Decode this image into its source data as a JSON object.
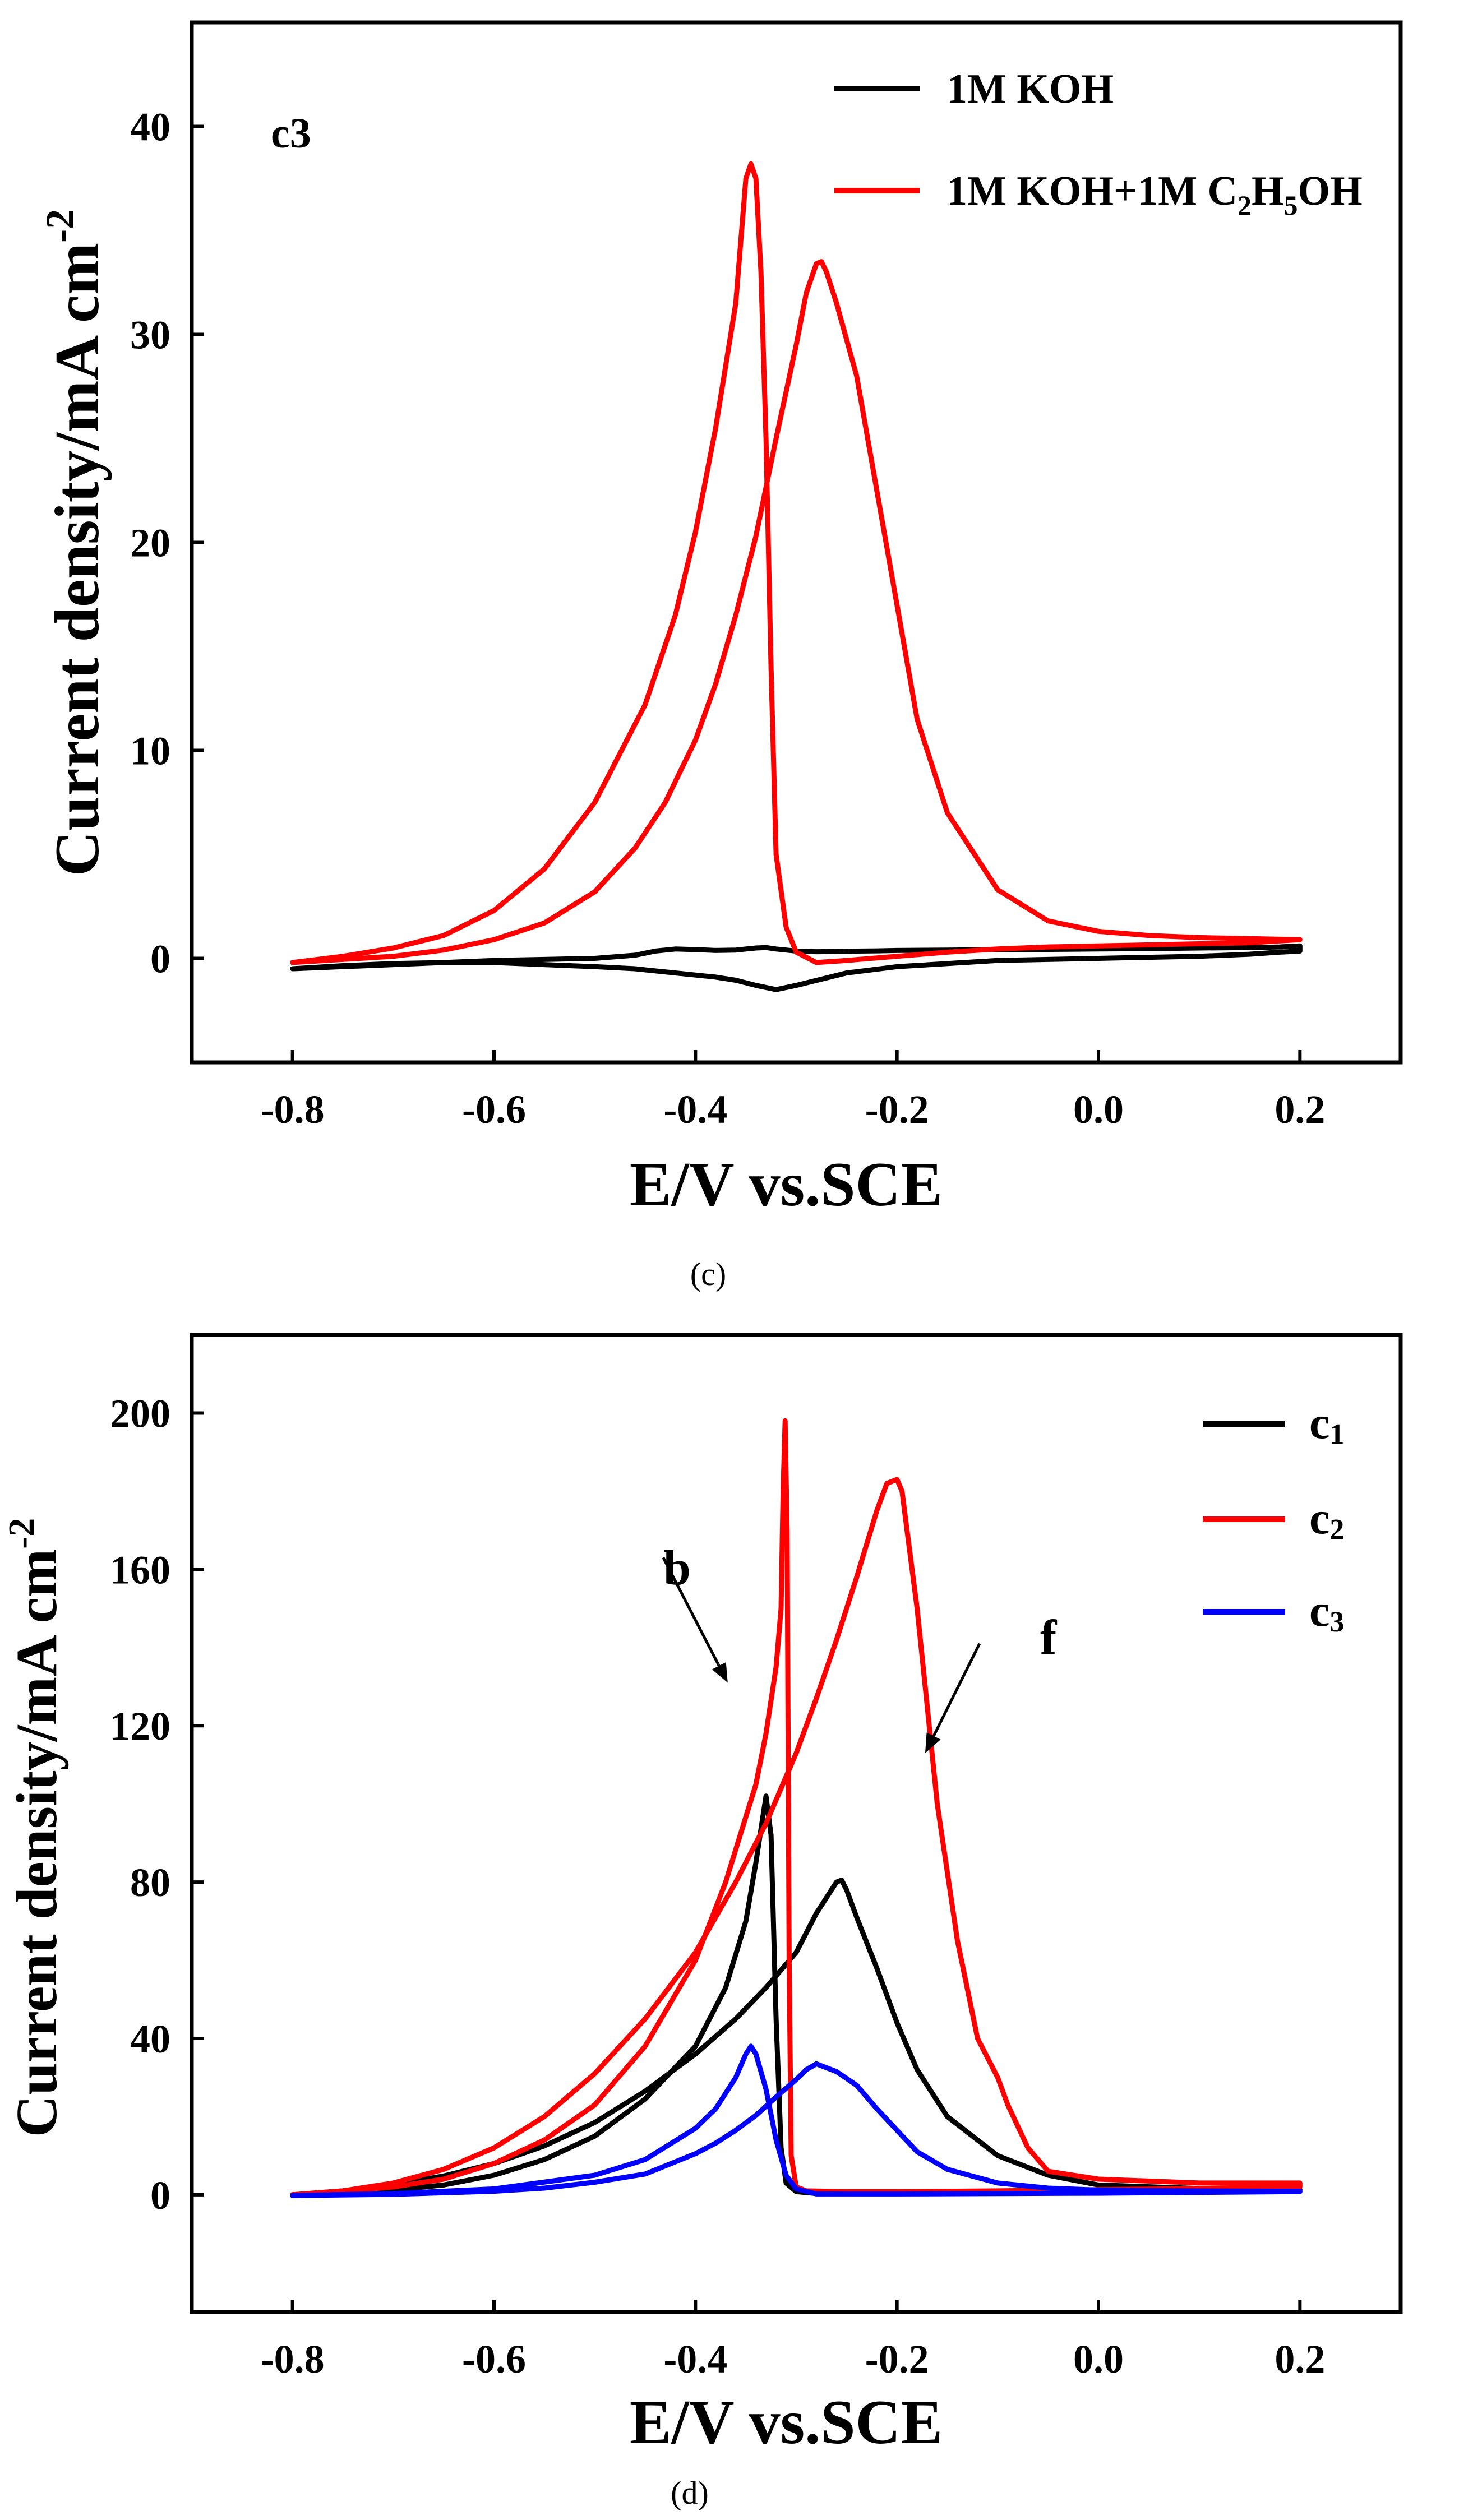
{
  "figure": {
    "panel_c_caption": "(c)",
    "panel_d_caption": "(d)"
  },
  "chart_data": [
    {
      "id": "c",
      "type": "line",
      "panel_label": "c3",
      "xlabel": "E/V vs.SCE",
      "ylabel": "Current density/mA cm",
      "ylabel_sup": "-2",
      "xlim": [
        -0.9,
        0.3
      ],
      "ylim": [
        -5,
        45
      ],
      "xticks": [
        -0.8,
        -0.6,
        -0.4,
        -0.2,
        0.0,
        0.2
      ],
      "xtick_labels": [
        "-0.8",
        "-0.6",
        "-0.4",
        "-0.2",
        "0.0",
        "0.2"
      ],
      "yticks": [
        0,
        10,
        20,
        30,
        40
      ],
      "ytick_labels": [
        "0",
        "10",
        "20",
        "30",
        "40"
      ],
      "legend_position": "top-right",
      "series": [
        {
          "name": "1M KOH",
          "color": "#000000",
          "x": [
            -0.8,
            -0.7,
            -0.6,
            -0.55,
            -0.5,
            -0.46,
            -0.44,
            -0.42,
            -0.4,
            -0.38,
            -0.36,
            -0.34,
            -0.33,
            -0.32,
            -0.3,
            -0.28,
            -0.26,
            -0.24,
            -0.22,
            -0.2,
            -0.15,
            -0.1,
            -0.05,
            0.0,
            0.05,
            0.1,
            0.15,
            0.18,
            0.2,
            0.2,
            0.18,
            0.15,
            0.1,
            0.05,
            0.0,
            -0.05,
            -0.1,
            -0.15,
            -0.2,
            -0.25,
            -0.3,
            -0.32,
            -0.34,
            -0.36,
            -0.38,
            -0.4,
            -0.42,
            -0.44,
            -0.46,
            -0.5,
            -0.55,
            -0.6,
            -0.65,
            -0.7,
            -0.75,
            -0.8
          ],
          "y": [
            -0.5,
            -0.3,
            -0.1,
            -0.05,
            0.0,
            0.15,
            0.35,
            0.45,
            0.42,
            0.38,
            0.4,
            0.5,
            0.52,
            0.45,
            0.35,
            0.32,
            0.33,
            0.35,
            0.36,
            0.38,
            0.4,
            0.42,
            0.43,
            0.45,
            0.47,
            0.5,
            0.52,
            0.55,
            0.6,
            0.35,
            0.3,
            0.2,
            0.1,
            0.05,
            0.0,
            -0.05,
            -0.1,
            -0.25,
            -0.4,
            -0.7,
            -1.3,
            -1.5,
            -1.3,
            -1.05,
            -0.9,
            -0.8,
            -0.7,
            -0.6,
            -0.5,
            -0.4,
            -0.3,
            -0.2,
            -0.2,
            -0.25,
            -0.35,
            -0.5
          ]
        },
        {
          "name": "1M KOH+1M C2H5OH",
          "legend_main": "1M KOH+1M C",
          "legend_sub1": "2",
          "legend_mid": "H",
          "legend_sub2": "5",
          "legend_tail": "OH",
          "color": "#ff0000",
          "x": [
            -0.8,
            -0.75,
            -0.7,
            -0.65,
            -0.6,
            -0.55,
            -0.5,
            -0.45,
            -0.42,
            -0.4,
            -0.38,
            -0.36,
            -0.355,
            -0.35,
            -0.345,
            -0.34,
            -0.335,
            -0.33,
            -0.325,
            -0.32,
            -0.31,
            -0.3,
            -0.28,
            -0.25,
            -0.2,
            -0.15,
            -0.1,
            -0.05,
            0.0,
            0.05,
            0.1,
            0.15,
            0.2,
            0.2,
            0.15,
            0.1,
            0.05,
            0.0,
            -0.05,
            -0.1,
            -0.15,
            -0.18,
            -0.2,
            -0.22,
            -0.24,
            -0.26,
            -0.27,
            -0.275,
            -0.28,
            -0.29,
            -0.3,
            -0.32,
            -0.34,
            -0.36,
            -0.38,
            -0.4,
            -0.43,
            -0.46,
            -0.5,
            -0.55,
            -0.6,
            -0.65,
            -0.7,
            -0.75,
            -0.8
          ],
          "y": [
            -0.2,
            0.1,
            0.5,
            1.1,
            2.3,
            4.3,
            7.5,
            12.2,
            16.5,
            20.5,
            25.5,
            31.5,
            34.5,
            37.5,
            38.2,
            37.5,
            33.0,
            25.0,
            14.0,
            5.0,
            1.5,
            0.3,
            -0.2,
            -0.1,
            0.1,
            0.3,
            0.45,
            0.55,
            0.6,
            0.65,
            0.7,
            0.75,
            0.9,
            0.9,
            0.95,
            1.0,
            1.1,
            1.3,
            1.8,
            3.3,
            7.0,
            11.5,
            17.0,
            22.5,
            28.0,
            31.5,
            33.0,
            33.5,
            33.4,
            32.0,
            29.5,
            25.0,
            20.3,
            16.5,
            13.2,
            10.5,
            7.5,
            5.3,
            3.2,
            1.7,
            0.9,
            0.4,
            0.1,
            -0.05,
            -0.2
          ]
        }
      ]
    },
    {
      "id": "d",
      "type": "line",
      "xlabel": "E/V vs.SCE",
      "ylabel": "Current density/mA cm",
      "ylabel_sup": "-2",
      "xlim": [
        -0.9,
        0.3
      ],
      "ylim": [
        -30,
        220
      ],
      "xticks": [
        -0.8,
        -0.6,
        -0.4,
        -0.2,
        0.0,
        0.2
      ],
      "xtick_labels": [
        "-0.8",
        "-0.6",
        "-0.4",
        "-0.2",
        "0.0",
        "0.2"
      ],
      "yticks": [
        0,
        40,
        80,
        120,
        160,
        200
      ],
      "ytick_labels": [
        "0",
        "40",
        "80",
        "120",
        "160",
        "200"
      ],
      "legend_position": "top-right",
      "annotations": [
        {
          "text": "b",
          "arrow_from": [
            -0.432,
            163
          ],
          "arrow_to": [
            -0.368,
            131
          ]
        },
        {
          "text": "f",
          "arrow_from": [
            -0.118,
            141
          ],
          "arrow_to": [
            -0.172,
            113
          ]
        }
      ],
      "series": [
        {
          "name": "c1",
          "label_letter": "c",
          "label_sub": "1",
          "color": "#000000",
          "x": [
            -0.8,
            -0.75,
            -0.7,
            -0.65,
            -0.6,
            -0.55,
            -0.5,
            -0.45,
            -0.4,
            -0.37,
            -0.35,
            -0.34,
            -0.33,
            -0.325,
            -0.32,
            -0.315,
            -0.31,
            -0.3,
            -0.28,
            -0.25,
            -0.2,
            -0.15,
            -0.1,
            0.0,
            0.1,
            0.2,
            0.2,
            0.1,
            0.0,
            -0.05,
            -0.1,
            -0.15,
            -0.18,
            -0.2,
            -0.22,
            -0.24,
            -0.25,
            -0.255,
            -0.26,
            -0.28,
            -0.3,
            -0.33,
            -0.36,
            -0.4,
            -0.45,
            -0.5,
            -0.55,
            -0.6,
            -0.65,
            -0.7,
            -0.75,
            -0.8
          ],
          "y": [
            0.0,
            0.5,
            1.2,
            2.5,
            5.0,
            9.0,
            15.0,
            24.5,
            38.0,
            53.0,
            70.0,
            85.0,
            102.0,
            92.0,
            45.0,
            12.0,
            3.0,
            0.8,
            0.3,
            0.3,
            0.4,
            0.5,
            0.6,
            0.8,
            1.0,
            1.2,
            1.3,
            1.6,
            2.5,
            5.0,
            10.0,
            20.0,
            32.0,
            44.0,
            58.0,
            71.0,
            78.0,
            80.5,
            80.0,
            72.0,
            62.0,
            53.0,
            45.0,
            36.0,
            26.5,
            18.5,
            12.5,
            8.0,
            4.8,
            2.6,
            1.0,
            0.0
          ]
        },
        {
          "name": "c2",
          "label_letter": "c",
          "label_sub": "2",
          "color": "#ff0000",
          "x": [
            -0.8,
            -0.75,
            -0.7,
            -0.65,
            -0.6,
            -0.55,
            -0.5,
            -0.45,
            -0.4,
            -0.37,
            -0.34,
            -0.33,
            -0.32,
            -0.315,
            -0.313,
            -0.311,
            -0.309,
            -0.307,
            -0.305,
            -0.3,
            -0.29,
            -0.25,
            -0.2,
            -0.15,
            -0.1,
            0.0,
            0.1,
            0.2,
            0.2,
            0.1,
            0.0,
            -0.05,
            -0.07,
            -0.09,
            -0.1,
            -0.12,
            -0.14,
            -0.16,
            -0.17,
            -0.18,
            -0.19,
            -0.195,
            -0.2,
            -0.21,
            -0.22,
            -0.24,
            -0.26,
            -0.28,
            -0.3,
            -0.33,
            -0.36,
            -0.4,
            -0.45,
            -0.5,
            -0.55,
            -0.6,
            -0.65,
            -0.7,
            -0.75,
            -0.8
          ],
          "y": [
            0.0,
            0.8,
            2.0,
            4.0,
            8.0,
            14.0,
            23.0,
            38.0,
            60.0,
            80.0,
            105.0,
            118.0,
            135.0,
            150.0,
            180.0,
            198.0,
            170.0,
            60.0,
            10.0,
            2.0,
            1.0,
            0.8,
            0.8,
            0.9,
            1.0,
            1.3,
            1.6,
            2.0,
            3.0,
            3.0,
            4.0,
            6.0,
            12.0,
            23.0,
            30.0,
            40.0,
            65.0,
            100.0,
            125.0,
            150.0,
            170.0,
            180.0,
            183.0,
            182.0,
            175.0,
            158.0,
            142.0,
            127.0,
            113.0,
            95.0,
            80.0,
            62.0,
            45.0,
            31.0,
            20.0,
            12.0,
            6.5,
            3.0,
            1.0,
            0.0
          ]
        },
        {
          "name": "c3",
          "label_letter": "c",
          "label_sub": "3",
          "color": "#0000ff",
          "x": [
            -0.8,
            -0.7,
            -0.6,
            -0.5,
            -0.45,
            -0.4,
            -0.38,
            -0.36,
            -0.35,
            -0.345,
            -0.34,
            -0.33,
            -0.32,
            -0.31,
            -0.3,
            -0.28,
            -0.2,
            -0.1,
            0.0,
            0.1,
            0.2,
            0.2,
            0.1,
            0.0,
            -0.05,
            -0.1,
            -0.15,
            -0.18,
            -0.2,
            -0.22,
            -0.24,
            -0.26,
            -0.275,
            -0.28,
            -0.29,
            -0.3,
            -0.32,
            -0.34,
            -0.36,
            -0.38,
            -0.4,
            -0.45,
            -0.5,
            -0.55,
            -0.6,
            -0.7,
            -0.8
          ],
          "y": [
            -0.2,
            0.3,
            1.5,
            5.0,
            9.0,
            17.0,
            22.0,
            30.0,
            36.0,
            38.0,
            36.0,
            27.0,
            14.0,
            5.0,
            1.5,
            0.2,
            0.2,
            0.3,
            0.4,
            0.6,
            0.8,
            0.9,
            1.0,
            1.2,
            1.7,
            3.0,
            6.5,
            11.0,
            16.5,
            22.0,
            28.0,
            31.5,
            33.0,
            33.5,
            32.0,
            29.5,
            25.0,
            20.3,
            16.5,
            13.2,
            10.5,
            5.3,
            3.2,
            1.7,
            0.9,
            0.1,
            -0.2
          ]
        }
      ]
    }
  ]
}
